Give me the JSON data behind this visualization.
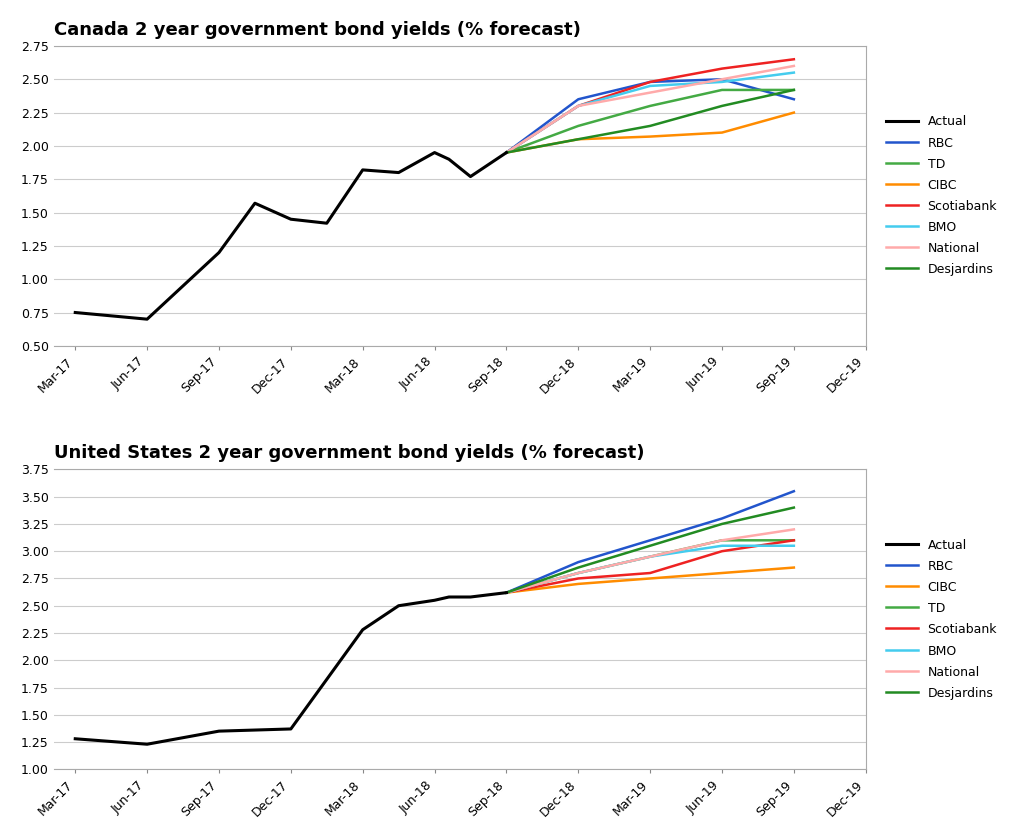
{
  "title1": "Canada 2 year government bond yields (% forecast)",
  "title2": "United States 2 year government bond yields (% forecast)",
  "x_labels": [
    "Mar-17",
    "Jun-17",
    "Sep-17",
    "Dec-17",
    "Mar-18",
    "Jun-18",
    "Sep-18",
    "Dec-18",
    "Mar-19",
    "Jun-19",
    "Sep-19",
    "Dec-19"
  ],
  "canada": {
    "ylim": [
      0.5,
      2.75
    ],
    "yticks": [
      0.5,
      0.75,
      1.0,
      1.25,
      1.5,
      1.75,
      2.0,
      2.25,
      2.5,
      2.75
    ]
  },
  "us": {
    "ylim": [
      1.0,
      3.75
    ],
    "yticks": [
      1.0,
      1.25,
      1.5,
      1.75,
      2.0,
      2.25,
      2.5,
      2.75,
      3.0,
      3.25,
      3.5,
      3.75
    ]
  },
  "canada_actual_x": [
    0,
    1,
    2,
    2.5,
    3,
    3.5,
    4,
    4.5,
    5,
    5.2,
    5.5,
    6
  ],
  "canada_actual_y": [
    0.75,
    0.7,
    1.2,
    1.57,
    1.45,
    1.42,
    1.82,
    1.8,
    1.95,
    1.9,
    1.77,
    1.95
  ],
  "canada_forecast_x": [
    6,
    7,
    8,
    9,
    10
  ],
  "canada_forecast": {
    "RBC": [
      1.95,
      2.35,
      2.48,
      2.5,
      2.35
    ],
    "TD": [
      1.95,
      2.15,
      2.3,
      2.42,
      2.42
    ],
    "CIBC": [
      1.95,
      2.05,
      2.07,
      2.1,
      2.25
    ],
    "Scotiabank": [
      1.95,
      2.3,
      2.48,
      2.58,
      2.65
    ],
    "BMO": [
      1.95,
      2.3,
      2.45,
      2.48,
      2.55
    ],
    "National": [
      1.95,
      2.3,
      2.4,
      2.5,
      2.6
    ],
    "Desjardins": [
      1.95,
      2.05,
      2.15,
      2.3,
      2.42
    ]
  },
  "us_actual_x": [
    0,
    1,
    2,
    2.5,
    3,
    4,
    4.5,
    5,
    5.2,
    5.5,
    6
  ],
  "us_actual_y": [
    1.28,
    1.23,
    1.35,
    1.36,
    1.37,
    2.28,
    2.5,
    2.55,
    2.58,
    2.58,
    2.62
  ],
  "us_forecast_x": [
    6,
    7,
    8,
    9,
    10
  ],
  "us_forecast": {
    "RBC": [
      2.62,
      2.9,
      3.1,
      3.3,
      3.55
    ],
    "TD": [
      2.62,
      2.8,
      2.95,
      3.1,
      3.1
    ],
    "CIBC": [
      2.62,
      2.7,
      2.75,
      2.8,
      2.85
    ],
    "Scotiabank": [
      2.62,
      2.75,
      2.8,
      3.0,
      3.1
    ],
    "BMO": [
      2.62,
      2.8,
      2.95,
      3.05,
      3.05
    ],
    "National": [
      2.62,
      2.8,
      2.95,
      3.1,
      3.2
    ],
    "Desjardins": [
      2.62,
      2.85,
      3.05,
      3.25,
      3.4
    ]
  },
  "colors": {
    "Actual": "#000000",
    "RBC": "#2255CC",
    "TD": "#44AA44",
    "CIBC": "#FF8C00",
    "Scotiabank": "#EE2222",
    "BMO": "#44CCEE",
    "National": "#FFAAAA",
    "Desjardins": "#228B22"
  },
  "background": "#ffffff",
  "grid_color": "#cccccc",
  "canada_legend_order": [
    "Actual",
    "RBC",
    "TD",
    "CIBC",
    "Scotiabank",
    "BMO",
    "National",
    "Desjardins"
  ],
  "us_legend_order": [
    "Actual",
    "RBC",
    "CIBC",
    "TD",
    "Scotiabank",
    "BMO",
    "National",
    "Desjardins"
  ]
}
